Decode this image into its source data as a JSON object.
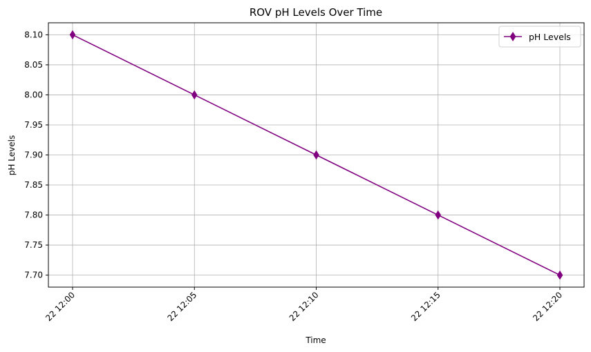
{
  "chart_data": {
    "type": "line",
    "title": "ROV pH Levels Over Time",
    "xlabel": "Time",
    "ylabel": "pH Levels",
    "x": [
      "22 12:00",
      "22 12:05",
      "22 12:10",
      "22 12:15",
      "22 12:20"
    ],
    "series": [
      {
        "name": "pH Levels",
        "values": [
          8.1,
          8.0,
          7.9,
          7.8,
          7.7
        ],
        "color": "#800080",
        "marker": "diamond"
      }
    ],
    "ylim": [
      7.68,
      8.12
    ],
    "yticks": [
      "7.70",
      "7.75",
      "7.80",
      "7.85",
      "7.90",
      "7.95",
      "8.00",
      "8.05",
      "8.10"
    ],
    "grid": true,
    "legend_position": "top-right",
    "grid_color": "#b0b0b0"
  }
}
